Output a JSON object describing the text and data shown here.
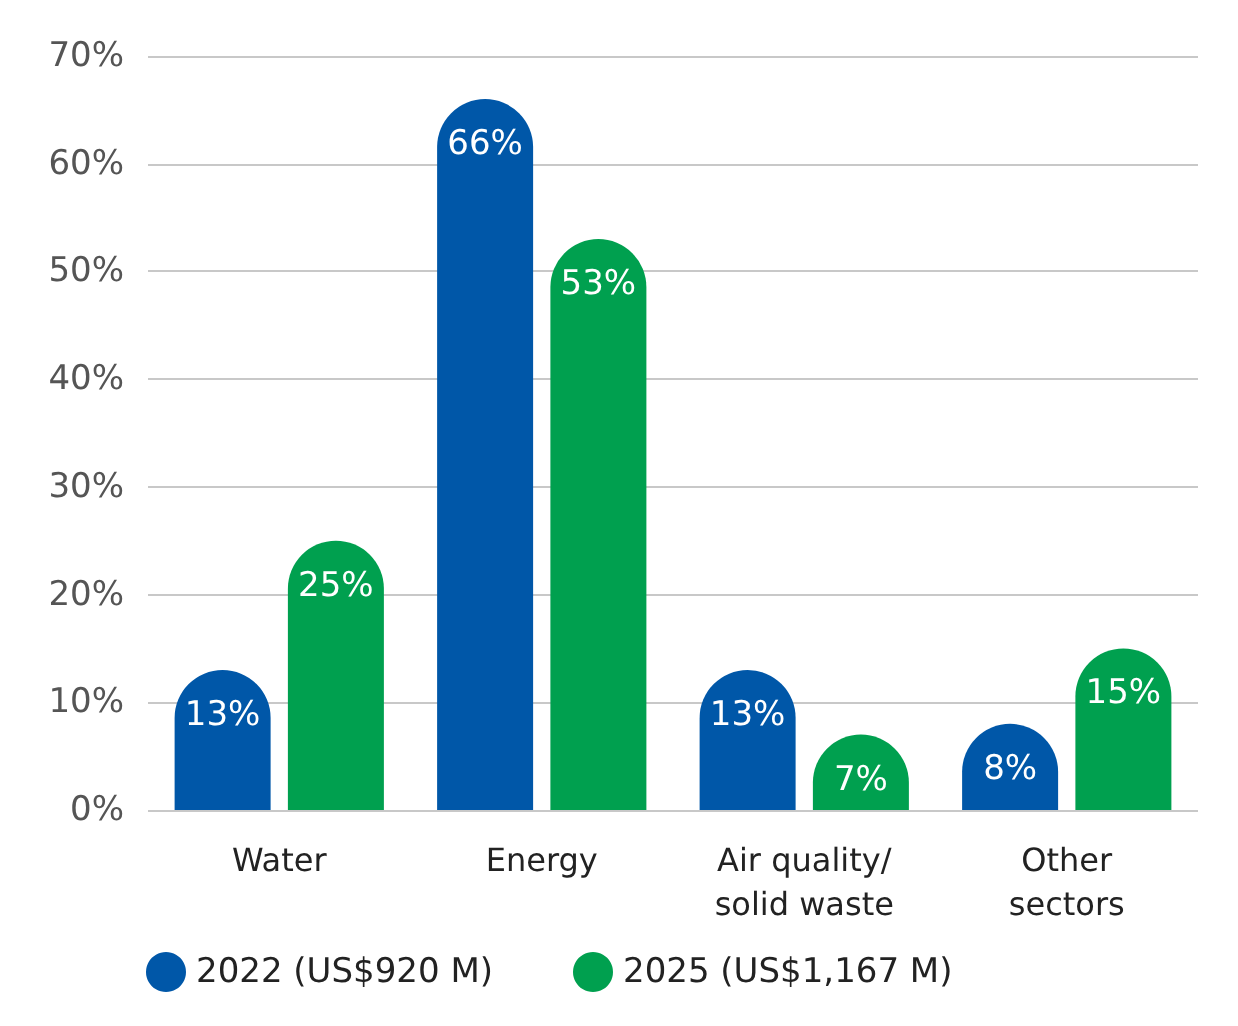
{
  "chart_data": {
    "type": "bar",
    "categories": [
      "Water",
      "Energy",
      "Air quality/\nsolid waste",
      "Other\nsectors"
    ],
    "series": [
      {
        "name": "2022 (US$920 M)",
        "color": "#0057a8",
        "values": [
          13,
          66,
          13,
          8
        ],
        "value_labels": [
          "13%",
          "66%",
          "13%",
          "8%"
        ]
      },
      {
        "name": "2025 (US$1,167 M)",
        "color": "#00a04f",
        "values": [
          25,
          53,
          7,
          15
        ],
        "value_labels": [
          "25%",
          "53%",
          "7%",
          "15%"
        ]
      }
    ],
    "ylim": [
      0,
      70
    ],
    "yticks": [
      {
        "value": 0,
        "label": "0%"
      },
      {
        "value": 10,
        "label": "10%"
      },
      {
        "value": 20,
        "label": "20%"
      },
      {
        "value": 30,
        "label": "30%"
      },
      {
        "value": 40,
        "label": "40%"
      },
      {
        "value": 50,
        "label": "50%"
      },
      {
        "value": 60,
        "label": "60%"
      },
      {
        "value": 70,
        "label": "70%"
      }
    ],
    "grid": "y",
    "legend": "bottom",
    "marker": "circle"
  }
}
